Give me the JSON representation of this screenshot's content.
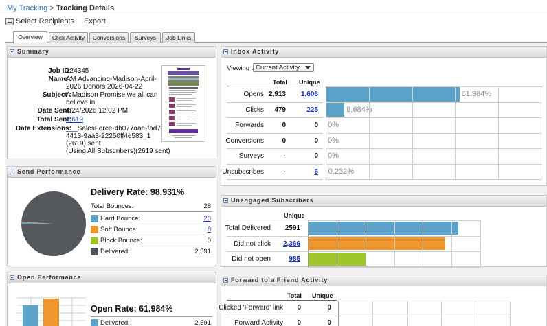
{
  "breadcrumb": {
    "root": "My Tracking",
    "separator": ">",
    "current": "Tracking Details"
  },
  "toolbar": {
    "select_recipients": "Select Recipients",
    "export": "Export"
  },
  "tabs": [
    "Overview",
    "Click Activity",
    "Conversions",
    "Surveys",
    "Job Links"
  ],
  "summary": {
    "title": "Summary",
    "job_id_label": "Job ID:",
    "job_id": "124345",
    "name_label": "Name :",
    "name_line1": "AM Advancing-Madison-April-",
    "name_line2": "2026 Donors 2026-04-22",
    "subject_label": "Subject :",
    "subject_line1": "A Madison Promise we all can",
    "subject_line2": "believe in",
    "date_label": "Date Sent:",
    "date": "4/24/2026 12:02 PM",
    "total_label": "Total Sent:",
    "total": "2,619",
    "ext_label": "Data Extensions:",
    "ext_line1": "___SalesForce-4b077aae-fad7-",
    "ext_line2": "4413-9aa3-22250ff4e583_1",
    "ext_line3": "(2619) sent",
    "ext_line4": "(Using All Subscribers)(2619 sent)"
  },
  "send_performance": {
    "title": "Send Performance",
    "delivery_rate": "Delivery Rate: 98.931%",
    "total_bounces_label": "Total Bounces:",
    "total_bounces": "28",
    "hard_label": "Hard Bounce:",
    "hard": "20",
    "soft_label": "Soft Bounce:",
    "soft": "8",
    "block_label": "Block Bounce:",
    "block": "0",
    "delivered_label": "Delivered:",
    "delivered": "2,591",
    "colors": {
      "hard": "#5ba3c9",
      "soft": "#f0962f",
      "block": "#9ec52c",
      "delivered": "#55585c"
    },
    "pie_fractions": {
      "delivered": 0.98931,
      "hard": 0.00764,
      "soft": 0.00305,
      "block": 0
    }
  },
  "open_performance": {
    "title": "Open Performance",
    "open_rate": "Open Rate: 61.984%",
    "delivered_label": "Delivered:",
    "delivered": "2,591",
    "bar_colors": [
      "#5ba3c9",
      "#f0962f"
    ]
  },
  "inbox_activity": {
    "title": "Inbox Activity",
    "viewing_label": "Viewing :",
    "viewing_value": "Current Activity",
    "col_total": "Total",
    "col_unique": "Unique",
    "bar_color": "#5ba3c9",
    "rows": [
      {
        "label": "Opens",
        "total": "2,913",
        "unique": "1,606",
        "unique_link": true,
        "pct": "61.984%",
        "fraction": 0.61984
      },
      {
        "label": "Clicks",
        "total": "479",
        "unique": "225",
        "unique_link": true,
        "pct": "8.684%",
        "fraction": 0.08684
      },
      {
        "label": "Forwards",
        "total": "0",
        "unique": "0",
        "unique_link": false,
        "pct": "0%",
        "fraction": 0
      },
      {
        "label": "Conversions",
        "total": "0",
        "unique": "0",
        "unique_link": false,
        "pct": "0%",
        "fraction": 0
      },
      {
        "label": "Surveys",
        "total": "-",
        "unique": "0",
        "unique_link": false,
        "pct": "0%",
        "fraction": 0
      },
      {
        "label": "Unsubscribes",
        "total": "-",
        "unique": "6",
        "unique_link": true,
        "pct": "0.232%",
        "fraction": 0.00232
      }
    ]
  },
  "unengaged": {
    "title": "Unengaged Subscribers",
    "col_unique": "Unique",
    "rows": [
      {
        "label": "Total Delivered",
        "value": "2591",
        "link": false,
        "fraction": 1.0,
        "color": "#5ba3c9"
      },
      {
        "label": "Did not click",
        "value": "2,366",
        "link": true,
        "fraction": 0.9132,
        "color": "#f0962f"
      },
      {
        "label": "Did not open",
        "value": "985",
        "link": true,
        "fraction": 0.3802,
        "color": "#9ec52c"
      }
    ]
  },
  "forward": {
    "title": "Forward to a Friend Activity",
    "col_total": "Total",
    "col_unique": "Unique",
    "rows": [
      {
        "label": "Clicked 'Forward' link",
        "total": "0",
        "unique": "0"
      },
      {
        "label": "Forward Activity",
        "total": "0",
        "unique": "0"
      }
    ]
  }
}
